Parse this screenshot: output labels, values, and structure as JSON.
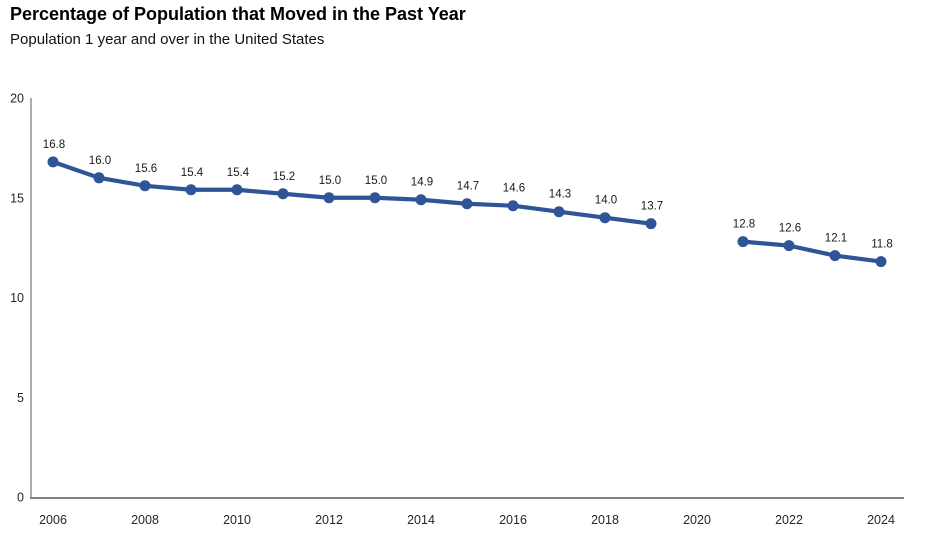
{
  "chart": {
    "title": "Percentage of Population that Moved in the Past Year",
    "subtitle": "Population 1 year and over in the United States"
  },
  "chart_data": {
    "type": "line",
    "title": "Percentage of Population that Moved in the Past Year",
    "subtitle": "Population 1 year and over in the United States",
    "x": [
      2006,
      2007,
      2008,
      2009,
      2010,
      2011,
      2012,
      2013,
      2014,
      2015,
      2016,
      2017,
      2018,
      2019,
      2020,
      2021,
      2022,
      2023,
      2024
    ],
    "values": [
      16.8,
      16.0,
      15.6,
      15.4,
      15.4,
      15.2,
      15.0,
      15.0,
      14.9,
      14.7,
      14.6,
      14.3,
      14.0,
      13.7,
      null,
      12.8,
      12.6,
      12.1,
      11.8
    ],
    "x_tick_labels": [
      "2006",
      "2008",
      "2010",
      "2012",
      "2014",
      "2016",
      "2018",
      "2020",
      "2022",
      "2024"
    ],
    "y_ticks": [
      0,
      5,
      10,
      15,
      20
    ],
    "ylim": [
      0,
      20
    ],
    "xlabel": "",
    "ylabel": "",
    "data_labels_shown": true,
    "data_label_format": "one_decimal",
    "legend_position": "none",
    "grid": false,
    "gap_note": "no data point for 2020",
    "line_color": "#2F5597",
    "axis_color": "#808080",
    "text_color": "#262626"
  }
}
